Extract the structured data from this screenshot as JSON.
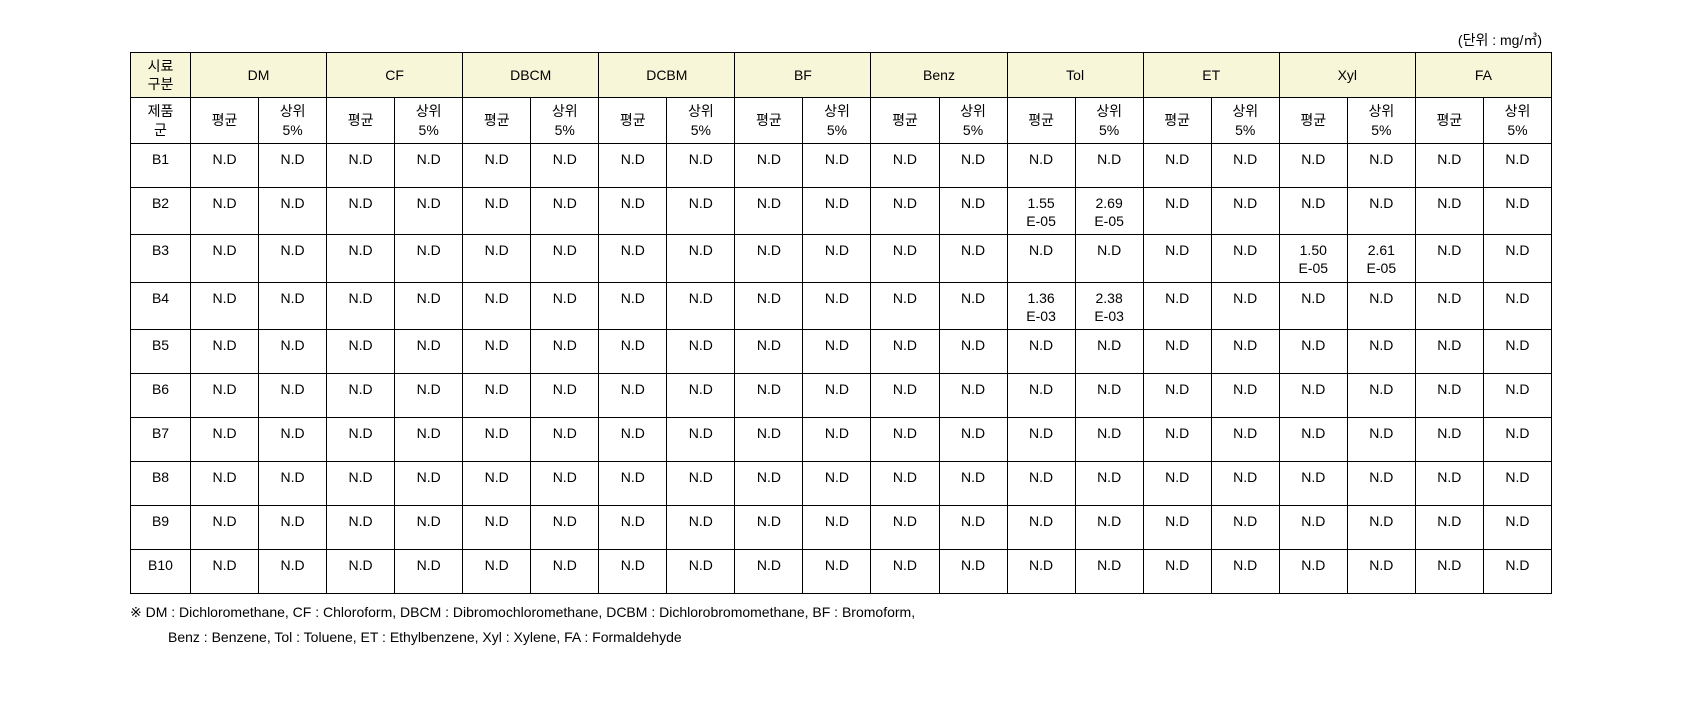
{
  "unit_label": "(단위 : mg/㎥)",
  "header": {
    "row_col1": "시료\n구분",
    "chem_groups": [
      "DM",
      "CF",
      "DBCM",
      "DCBM",
      "BF",
      "Benz",
      "Tol",
      "ET",
      "Xyl",
      "FA"
    ],
    "sub_col1": "제품\n군",
    "sub_avg": "평균",
    "sub_top": "상위\n5%"
  },
  "rows": [
    {
      "label": "B1",
      "cells": [
        "N.D",
        "N.D",
        "N.D",
        "N.D",
        "N.D",
        "N.D",
        "N.D",
        "N.D",
        "N.D",
        "N.D",
        "N.D",
        "N.D",
        "N.D",
        "N.D",
        "N.D",
        "N.D",
        "N.D",
        "N.D",
        "N.D",
        "N.D"
      ]
    },
    {
      "label": "B2",
      "cells": [
        "N.D",
        "N.D",
        "N.D",
        "N.D",
        "N.D",
        "N.D",
        "N.D",
        "N.D",
        "N.D",
        "N.D",
        "N.D",
        "N.D",
        "1.55\nE-05",
        "2.69\nE-05",
        "N.D",
        "N.D",
        "N.D",
        "N.D",
        "N.D",
        "N.D"
      ]
    },
    {
      "label": "B3",
      "cells": [
        "N.D",
        "N.D",
        "N.D",
        "N.D",
        "N.D",
        "N.D",
        "N.D",
        "N.D",
        "N.D",
        "N.D",
        "N.D",
        "N.D",
        "N.D",
        "N.D",
        "N.D",
        "N.D",
        "1.50\nE-05",
        "2.61\nE-05",
        "N.D",
        "N.D"
      ]
    },
    {
      "label": "B4",
      "cells": [
        "N.D",
        "N.D",
        "N.D",
        "N.D",
        "N.D",
        "N.D",
        "N.D",
        "N.D",
        "N.D",
        "N.D",
        "N.D",
        "N.D",
        "1.36\nE-03",
        "2.38\nE-03",
        "N.D",
        "N.D",
        "N.D",
        "N.D",
        "N.D",
        "N.D"
      ]
    },
    {
      "label": "B5",
      "cells": [
        "N.D",
        "N.D",
        "N.D",
        "N.D",
        "N.D",
        "N.D",
        "N.D",
        "N.D",
        "N.D",
        "N.D",
        "N.D",
        "N.D",
        "N.D",
        "N.D",
        "N.D",
        "N.D",
        "N.D",
        "N.D",
        "N.D",
        "N.D"
      ]
    },
    {
      "label": "B6",
      "cells": [
        "N.D",
        "N.D",
        "N.D",
        "N.D",
        "N.D",
        "N.D",
        "N.D",
        "N.D",
        "N.D",
        "N.D",
        "N.D",
        "N.D",
        "N.D",
        "N.D",
        "N.D",
        "N.D",
        "N.D",
        "N.D",
        "N.D",
        "N.D"
      ]
    },
    {
      "label": "B7",
      "cells": [
        "N.D",
        "N.D",
        "N.D",
        "N.D",
        "N.D",
        "N.D",
        "N.D",
        "N.D",
        "N.D",
        "N.D",
        "N.D",
        "N.D",
        "N.D",
        "N.D",
        "N.D",
        "N.D",
        "N.D",
        "N.D",
        "N.D",
        "N.D"
      ]
    },
    {
      "label": "B8",
      "cells": [
        "N.D",
        "N.D",
        "N.D",
        "N.D",
        "N.D",
        "N.D",
        "N.D",
        "N.D",
        "N.D",
        "N.D",
        "N.D",
        "N.D",
        "N.D",
        "N.D",
        "N.D",
        "N.D",
        "N.D",
        "N.D",
        "N.D",
        "N.D"
      ]
    },
    {
      "label": "B9",
      "cells": [
        "N.D",
        "N.D",
        "N.D",
        "N.D",
        "N.D",
        "N.D",
        "N.D",
        "N.D",
        "N.D",
        "N.D",
        "N.D",
        "N.D",
        "N.D",
        "N.D",
        "N.D",
        "N.D",
        "N.D",
        "N.D",
        "N.D",
        "N.D"
      ]
    },
    {
      "label": "B10",
      "cells": [
        "N.D",
        "N.D",
        "N.D",
        "N.D",
        "N.D",
        "N.D",
        "N.D",
        "N.D",
        "N.D",
        "N.D",
        "N.D",
        "N.D",
        "N.D",
        "N.D",
        "N.D",
        "N.D",
        "N.D",
        "N.D",
        "N.D",
        "N.D"
      ]
    }
  ],
  "footnote_line1": "※ DM : Dichloromethane, CF : Chloroform, DBCM : Dibromochloromethane, DCBM : Dichlorobromomethane, BF : Bromoform,",
  "footnote_line2": "Benz : Benzene, Tol : Toluene, ET : Ethylbenzene, Xyl : Xylene, FA : Formaldehyde",
  "colors": {
    "header_bg": "#f8f6d8",
    "border": "#000000",
    "background": "#ffffff"
  }
}
